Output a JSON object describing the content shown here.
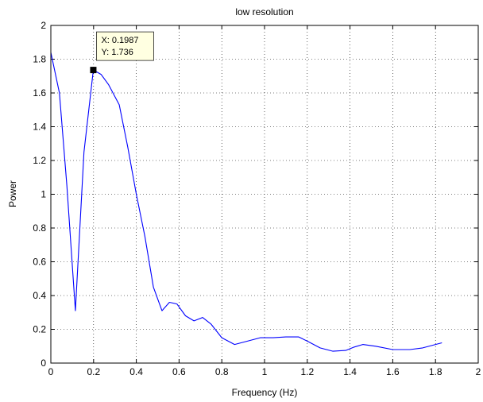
{
  "chart_data": {
    "type": "line",
    "title": "low resolution",
    "xlabel": "Frequency (Hz)",
    "ylabel": "Power",
    "xlim": [
      0,
      2
    ],
    "ylim": [
      0,
      2
    ],
    "xticks": [
      0,
      0.2,
      0.4,
      0.6,
      0.8,
      1,
      1.2,
      1.4,
      1.6,
      1.8,
      2
    ],
    "xtick_labels": [
      "0",
      "0.2",
      "0.4",
      "0.6",
      "0.8",
      "1",
      "1.2",
      "1.4",
      "1.6",
      "1.8",
      "2"
    ],
    "yticks": [
      0,
      0.2,
      0.4,
      0.6,
      0.8,
      1,
      1.2,
      1.4,
      1.6,
      1.8,
      2
    ],
    "ytick_labels": [
      "0",
      "0.2",
      "0.4",
      "0.6",
      "0.8",
      "1",
      "1.2",
      "1.4",
      "1.6",
      "1.8",
      "2"
    ],
    "grid": true,
    "grid_style": "dotted",
    "series": [
      {
        "color": "#0000ff",
        "x": [
          0,
          0.04,
          0.075,
          0.115,
          0.155,
          0.1987,
          0.235,
          0.27,
          0.32,
          0.36,
          0.4,
          0.44,
          0.48,
          0.52,
          0.555,
          0.59,
          0.63,
          0.67,
          0.71,
          0.75,
          0.8,
          0.86,
          0.92,
          0.98,
          1.04,
          1.1,
          1.16,
          1.2,
          1.26,
          1.32,
          1.38,
          1.42,
          1.46,
          1.52,
          1.6,
          1.68,
          1.74,
          1.8,
          1.83
        ],
        "y": [
          1.84,
          1.6,
          1.05,
          0.31,
          1.25,
          1.736,
          1.71,
          1.65,
          1.53,
          1.28,
          1.0,
          0.75,
          0.45,
          0.31,
          0.36,
          0.35,
          0.28,
          0.25,
          0.27,
          0.23,
          0.15,
          0.11,
          0.13,
          0.15,
          0.15,
          0.155,
          0.155,
          0.13,
          0.09,
          0.07,
          0.075,
          0.095,
          0.11,
          0.1,
          0.08,
          0.08,
          0.09,
          0.11,
          0.12
        ]
      }
    ],
    "datatip": {
      "x": 0.1987,
      "y": 1.736,
      "x_label": "X: 0.1987",
      "y_label": "Y: 1.736",
      "background": "#ffffe1"
    }
  }
}
